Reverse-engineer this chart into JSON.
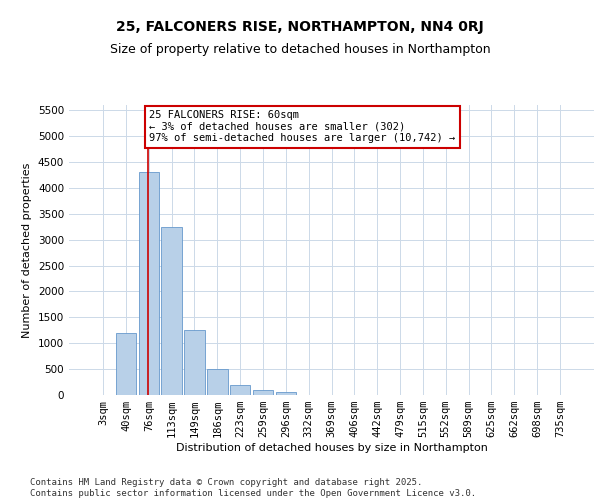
{
  "title": "25, FALCONERS RISE, NORTHAMPTON, NN4 0RJ",
  "subtitle": "Size of property relative to detached houses in Northampton",
  "xlabel": "Distribution of detached houses by size in Northampton",
  "ylabel": "Number of detached properties",
  "categories": [
    "3sqm",
    "40sqm",
    "76sqm",
    "113sqm",
    "149sqm",
    "186sqm",
    "223sqm",
    "259sqm",
    "296sqm",
    "332sqm",
    "369sqm",
    "406sqm",
    "442sqm",
    "479sqm",
    "515sqm",
    "552sqm",
    "589sqm",
    "625sqm",
    "662sqm",
    "698sqm",
    "735sqm"
  ],
  "values": [
    0,
    1200,
    4300,
    3250,
    1250,
    500,
    200,
    100,
    60,
    0,
    0,
    0,
    0,
    0,
    0,
    0,
    0,
    0,
    0,
    0,
    0
  ],
  "bar_color": "#b8d0e8",
  "bar_edge_color": "#6699cc",
  "vline_color": "#cc0000",
  "vline_x": 1.97,
  "annotation_text": "25 FALCONERS RISE: 60sqm\n← 3% of detached houses are smaller (302)\n97% of semi-detached houses are larger (10,742) →",
  "annotation_box_color": "#ffffff",
  "annotation_box_edge": "#cc0000",
  "annotation_fontsize": 7.5,
  "ylim_max": 5600,
  "yticks": [
    0,
    500,
    1000,
    1500,
    2000,
    2500,
    3000,
    3500,
    4000,
    4500,
    5000,
    5500
  ],
  "title_fontsize": 10,
  "subtitle_fontsize": 9,
  "xlabel_fontsize": 8,
  "ylabel_fontsize": 8,
  "tick_fontsize": 7.5,
  "footer_text": "Contains HM Land Registry data © Crown copyright and database right 2025.\nContains public sector information licensed under the Open Government Licence v3.0.",
  "footer_fontsize": 6.5,
  "background_color": "#ffffff",
  "grid_color": "#ccd9e8"
}
